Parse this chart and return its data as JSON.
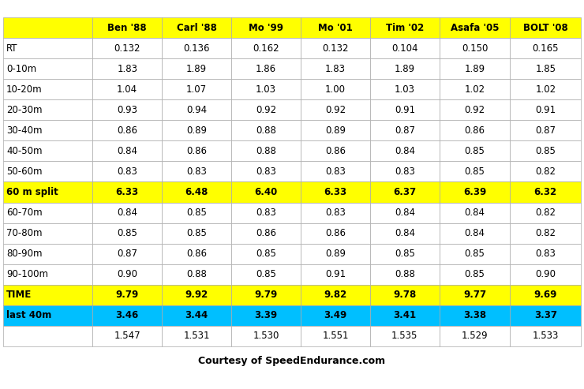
{
  "columns": [
    "",
    "Ben '88",
    "Carl '88",
    "Mo '99",
    "Mo '01",
    "Tim '02",
    "Asafa '05",
    "BOLT '08"
  ],
  "rows": [
    {
      "label": "RT",
      "values": [
        "0.132",
        "0.136",
        "0.162",
        "0.132",
        "0.104",
        "0.150",
        "0.165"
      ],
      "bg": "white",
      "bold": false
    },
    {
      "label": "0-10m",
      "values": [
        "1.83",
        "1.89",
        "1.86",
        "1.83",
        "1.89",
        "1.89",
        "1.85"
      ],
      "bg": "white",
      "bold": false
    },
    {
      "label": "10-20m",
      "values": [
        "1.04",
        "1.07",
        "1.03",
        "1.00",
        "1.03",
        "1.02",
        "1.02"
      ],
      "bg": "white",
      "bold": false
    },
    {
      "label": "20-30m",
      "values": [
        "0.93",
        "0.94",
        "0.92",
        "0.92",
        "0.91",
        "0.92",
        "0.91"
      ],
      "bg": "white",
      "bold": false
    },
    {
      "label": "30-40m",
      "values": [
        "0.86",
        "0.89",
        "0.88",
        "0.89",
        "0.87",
        "0.86",
        "0.87"
      ],
      "bg": "white",
      "bold": false
    },
    {
      "label": "40-50m",
      "values": [
        "0.84",
        "0.86",
        "0.88",
        "0.86",
        "0.84",
        "0.85",
        "0.85"
      ],
      "bg": "white",
      "bold": false
    },
    {
      "label": "50-60m",
      "values": [
        "0.83",
        "0.83",
        "0.83",
        "0.83",
        "0.83",
        "0.85",
        "0.82"
      ],
      "bg": "white",
      "bold": false
    },
    {
      "label": "60 m split",
      "values": [
        "6.33",
        "6.48",
        "6.40",
        "6.33",
        "6.37",
        "6.39",
        "6.32"
      ],
      "bg": "yellow",
      "bold": true
    },
    {
      "label": "60-70m",
      "values": [
        "0.84",
        "0.85",
        "0.83",
        "0.83",
        "0.84",
        "0.84",
        "0.82"
      ],
      "bg": "white",
      "bold": false
    },
    {
      "label": "70-80m",
      "values": [
        "0.85",
        "0.85",
        "0.86",
        "0.86",
        "0.84",
        "0.84",
        "0.82"
      ],
      "bg": "white",
      "bold": false
    },
    {
      "label": "80-90m",
      "values": [
        "0.87",
        "0.86",
        "0.85",
        "0.89",
        "0.85",
        "0.85",
        "0.83"
      ],
      "bg": "white",
      "bold": false
    },
    {
      "label": "90-100m",
      "values": [
        "0.90",
        "0.88",
        "0.85",
        "0.91",
        "0.88",
        "0.85",
        "0.90"
      ],
      "bg": "white",
      "bold": false
    },
    {
      "label": "TIME",
      "values": [
        "9.79",
        "9.92",
        "9.79",
        "9.82",
        "9.78",
        "9.77",
        "9.69"
      ],
      "bg": "yellow",
      "bold": true
    },
    {
      "label": "last 40m",
      "values": [
        "3.46",
        "3.44",
        "3.39",
        "3.49",
        "3.41",
        "3.38",
        "3.37"
      ],
      "bg": "cyan",
      "bold": true
    },
    {
      "label": "",
      "values": [
        "1.547",
        "1.531",
        "1.530",
        "1.551",
        "1.535",
        "1.529",
        "1.533"
      ],
      "bg": "white",
      "bold": false
    }
  ],
  "footer": "Courtesy of SpeedEndurance.com",
  "bg_map": {
    "white": "#FFFFFF",
    "yellow": "#FFFF00",
    "cyan": "#00BFFF"
  },
  "header_bg": "#FFFF00",
  "border_color": "#aaaaaa",
  "fig_width": 7.4,
  "fig_height": 4.93,
  "dpi": 100,
  "fontsize": 8.5,
  "footer_fontsize": 9,
  "col_props": [
    0.155,
    0.12,
    0.12,
    0.12,
    0.12,
    0.12,
    0.122,
    0.123
  ]
}
